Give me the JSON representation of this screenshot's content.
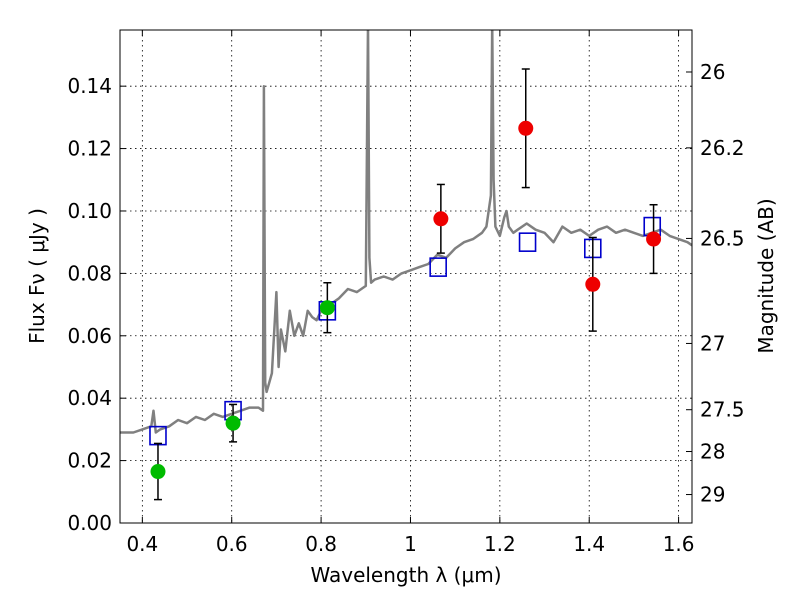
{
  "chart_data": {
    "type": "scatter",
    "xlabel": "Wavelength  λ (μm)",
    "ylabel_left": "Flux  Fν  ( μJy )",
    "ylabel_right": "Magnitude (AB)",
    "xlim": [
      0.35,
      1.63
    ],
    "ylim": [
      0.0,
      0.158
    ],
    "grid": true,
    "x_ticks": [
      {
        "value": 0.4,
        "label": "0.4"
      },
      {
        "value": 0.6,
        "label": "0.6"
      },
      {
        "value": 0.8,
        "label": "0.8"
      },
      {
        "value": 1.0,
        "label": "1"
      },
      {
        "value": 1.2,
        "label": "1.2"
      },
      {
        "value": 1.4,
        "label": "1.4"
      },
      {
        "value": 1.6,
        "label": "1.6"
      }
    ],
    "y_ticks": [
      {
        "value": 0.0,
        "label": "0.00"
      },
      {
        "value": 0.02,
        "label": "0.02"
      },
      {
        "value": 0.04,
        "label": "0.04"
      },
      {
        "value": 0.06,
        "label": "0.06"
      },
      {
        "value": 0.08,
        "label": "0.08"
      },
      {
        "value": 0.1,
        "label": "0.10"
      },
      {
        "value": 0.12,
        "label": "0.12"
      },
      {
        "value": 0.14,
        "label": "0.14"
      }
    ],
    "right_ticks": [
      {
        "mag": 26,
        "label": "26"
      },
      {
        "mag": 26.2,
        "label": "26.2"
      },
      {
        "mag": 26.5,
        "label": "26.5"
      },
      {
        "mag": 27,
        "label": "27"
      },
      {
        "mag": 27.5,
        "label": "27.5"
      },
      {
        "mag": 28,
        "label": "28"
      },
      {
        "mag": 29,
        "label": "29"
      }
    ],
    "model_spectrum": {
      "color": "#808080",
      "x": [
        0.35,
        0.38,
        0.4,
        0.42,
        0.425,
        0.43,
        0.44,
        0.46,
        0.48,
        0.5,
        0.52,
        0.54,
        0.56,
        0.58,
        0.6,
        0.62,
        0.64,
        0.66,
        0.67,
        0.672,
        0.675,
        0.678,
        0.682,
        0.69,
        0.7,
        0.705,
        0.71,
        0.72,
        0.73,
        0.74,
        0.75,
        0.76,
        0.77,
        0.78,
        0.79,
        0.8,
        0.82,
        0.84,
        0.86,
        0.88,
        0.9,
        0.905,
        0.908,
        0.912,
        0.92,
        0.94,
        0.96,
        0.98,
        1.0,
        1.02,
        1.04,
        1.06,
        1.08,
        1.1,
        1.12,
        1.14,
        1.16,
        1.17,
        1.18,
        1.183,
        1.186,
        1.19,
        1.2,
        1.21,
        1.215,
        1.22,
        1.23,
        1.24,
        1.26,
        1.28,
        1.3,
        1.32,
        1.34,
        1.36,
        1.38,
        1.4,
        1.42,
        1.44,
        1.46,
        1.48,
        1.5,
        1.52,
        1.54,
        1.56,
        1.58,
        1.6,
        1.62,
        1.63
      ],
      "y": [
        0.029,
        0.029,
        0.03,
        0.031,
        0.036,
        0.029,
        0.03,
        0.031,
        0.033,
        0.032,
        0.034,
        0.033,
        0.035,
        0.034,
        0.035,
        0.036,
        0.037,
        0.037,
        0.036,
        0.14,
        0.045,
        0.042,
        0.044,
        0.048,
        0.074,
        0.05,
        0.062,
        0.055,
        0.068,
        0.06,
        0.064,
        0.06,
        0.068,
        0.066,
        0.065,
        0.068,
        0.07,
        0.072,
        0.075,
        0.074,
        0.076,
        0.16,
        0.085,
        0.077,
        0.078,
        0.079,
        0.078,
        0.08,
        0.081,
        0.082,
        0.083,
        0.086,
        0.085,
        0.088,
        0.09,
        0.091,
        0.093,
        0.095,
        0.105,
        0.16,
        0.11,
        0.095,
        0.092,
        0.098,
        0.1,
        0.095,
        0.093,
        0.094,
        0.096,
        0.094,
        0.093,
        0.09,
        0.095,
        0.093,
        0.094,
        0.092,
        0.094,
        0.095,
        0.093,
        0.094,
        0.093,
        0.092,
        0.093,
        0.094,
        0.092,
        0.091,
        0.09,
        0.089
      ]
    },
    "model_photometry": {
      "color": "#0000cc",
      "x": [
        0.435,
        0.603,
        0.814,
        1.062,
        1.262,
        1.408,
        1.541
      ],
      "y": [
        0.028,
        0.036,
        0.068,
        0.082,
        0.09,
        0.088,
        0.095
      ]
    },
    "green_points": {
      "color": "#00bb00",
      "x": [
        0.435,
        0.603,
        0.814
      ],
      "y": [
        0.0165,
        0.032,
        0.069
      ],
      "yerr_low": [
        0.009,
        0.006,
        0.008
      ],
      "yerr_high": [
        0.009,
        0.006,
        0.008
      ]
    },
    "red_points": {
      "color": "#ee0000",
      "x": [
        1.068,
        1.258,
        1.408,
        1.544
      ],
      "y": [
        0.0975,
        0.1265,
        0.0765,
        0.091
      ],
      "yerr_low": [
        0.011,
        0.019,
        0.015,
        0.011
      ],
      "yerr_high": [
        0.011,
        0.019,
        0.015,
        0.011
      ]
    }
  }
}
